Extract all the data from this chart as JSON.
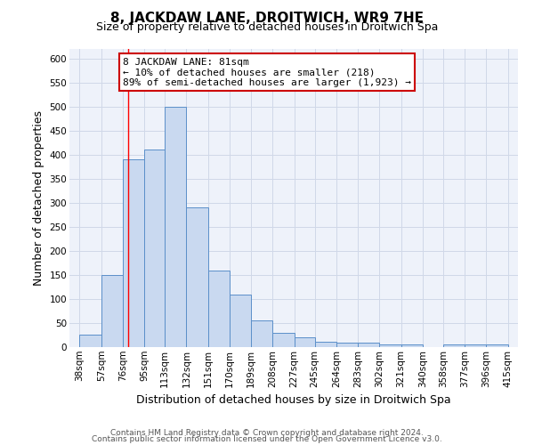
{
  "title": "8, JACKDAW LANE, DROITWICH, WR9 7HE",
  "subtitle": "Size of property relative to detached houses in Droitwich Spa",
  "xlabel": "Distribution of detached houses by size in Droitwich Spa",
  "ylabel": "Number of detached properties",
  "footer_line1": "Contains HM Land Registry data © Crown copyright and database right 2024.",
  "footer_line2": "Contains public sector information licensed under the Open Government Licence v3.0.",
  "annotation_line1": "8 JACKDAW LANE: 81sqm",
  "annotation_line2": "← 10% of detached houses are smaller (218)",
  "annotation_line3": "89% of semi-detached houses are larger (1,923) →",
  "bar_left_edges": [
    38,
    57,
    76,
    95,
    113,
    132,
    151,
    170,
    189,
    208,
    227,
    245,
    264,
    283,
    302,
    321,
    340,
    358,
    377,
    396
  ],
  "bar_widths": [
    19,
    19,
    19,
    18,
    19,
    19,
    19,
    19,
    19,
    19,
    18,
    19,
    19,
    19,
    19,
    19,
    18,
    19,
    19,
    19
  ],
  "bar_heights": [
    25,
    150,
    390,
    410,
    500,
    290,
    160,
    110,
    55,
    30,
    20,
    12,
    10,
    10,
    5,
    5,
    0,
    5,
    5,
    5
  ],
  "x_tick_labels": [
    "38sqm",
    "57sqm",
    "76sqm",
    "95sqm",
    "113sqm",
    "132sqm",
    "151sqm",
    "170sqm",
    "189sqm",
    "208sqm",
    "227sqm",
    "245sqm",
    "264sqm",
    "283sqm",
    "302sqm",
    "321sqm",
    "340sqm",
    "358sqm",
    "377sqm",
    "396sqm",
    "415sqm"
  ],
  "x_tick_positions": [
    38,
    57,
    76,
    95,
    113,
    132,
    151,
    170,
    189,
    208,
    227,
    245,
    264,
    283,
    302,
    321,
    340,
    358,
    377,
    396,
    415
  ],
  "ylim": [
    0,
    620
  ],
  "xlim": [
    29,
    424
  ],
  "bar_color": "#c9d9f0",
  "bar_edge_color": "#5b8fc9",
  "grid_color": "#d0d8e8",
  "background_color": "#eef2fa",
  "red_line_x": 81,
  "title_fontsize": 11,
  "subtitle_fontsize": 9,
  "axis_label_fontsize": 9,
  "tick_fontsize": 7.5,
  "annotation_fontsize": 8,
  "footer_fontsize": 6.5
}
